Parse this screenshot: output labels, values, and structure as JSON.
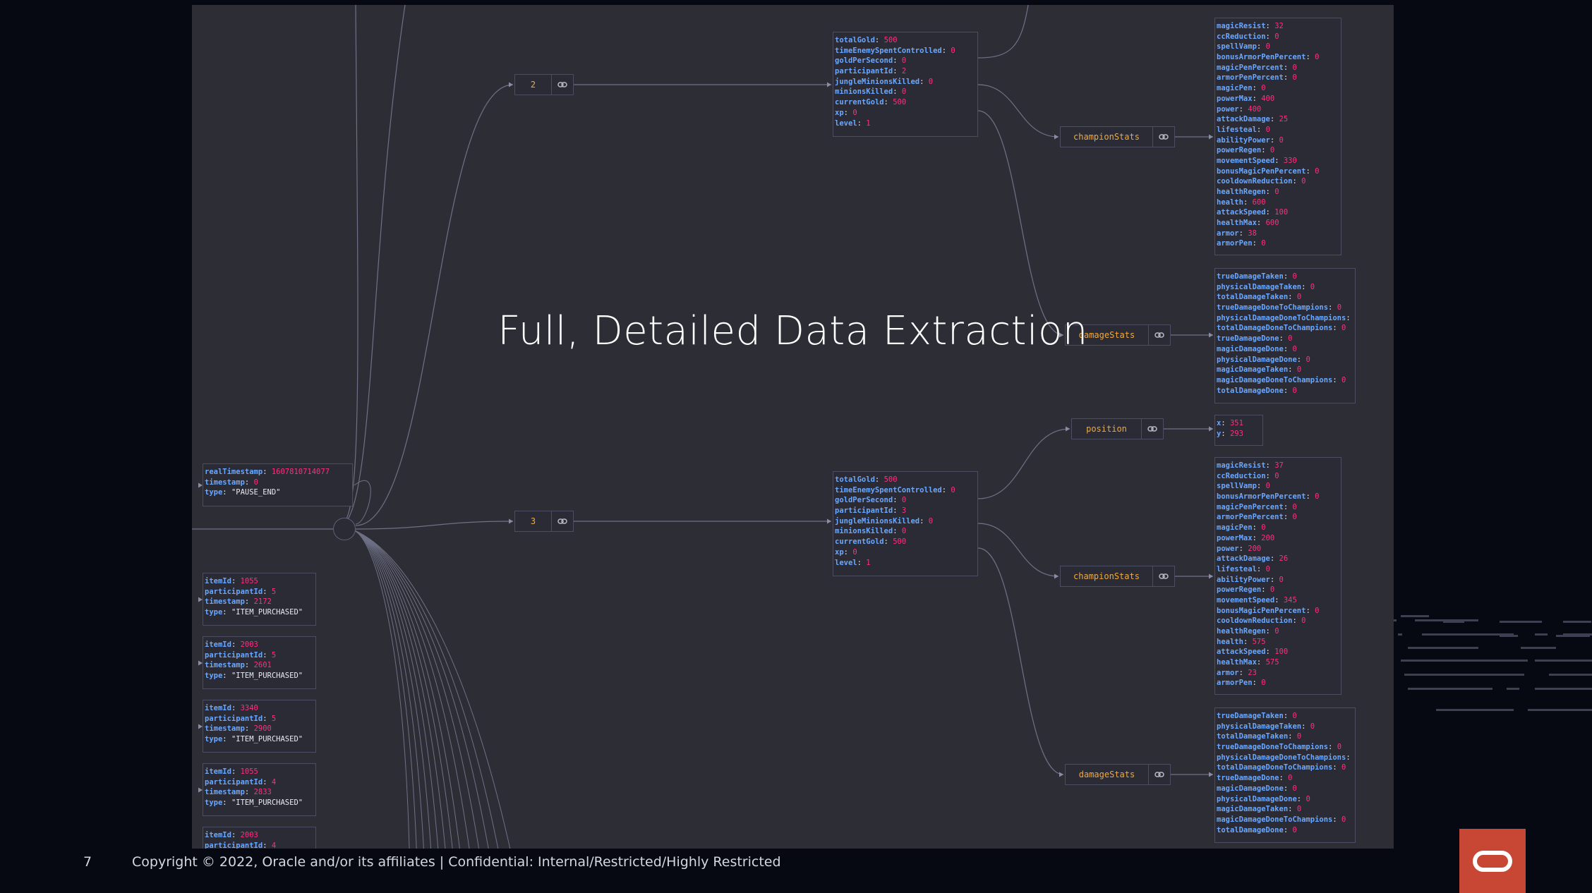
{
  "slide": {
    "title": "Full, Detailed Data Extraction",
    "page_number": "7",
    "footer": "Copyright © 2022, Oracle and/or its affiliates  |  Confidential: Internal/Restricted/Highly Restricted",
    "logo_icon": "oracle-logo-icon"
  },
  "colors": {
    "background": "#060812",
    "canvas": "#2d2e35",
    "node": "#2a2b35",
    "border": "#4b4e63",
    "key": "#6aa8ff",
    "number": "#ff2f80",
    "string": "#e8eaf2",
    "node_label": "#f2a93b",
    "brand": "#c74634"
  },
  "graph": {
    "keys": {
      "n2": "2",
      "n3": "3",
      "championStats": "championStats",
      "damageStats": "damageStats",
      "position": "position",
      "link_icon": "link-icon"
    },
    "objects": [
      {
        "id": "frame2",
        "rows": [
          [
            "totalGold",
            "500"
          ],
          [
            "timeEnemySpentControlled",
            "0"
          ],
          [
            "goldPerSecond",
            "0"
          ],
          [
            "participantId",
            "2"
          ],
          [
            "jungleMinionsKilled",
            "0"
          ],
          [
            "minionsKilled",
            "0"
          ],
          [
            "currentGold",
            "500"
          ],
          [
            "xp",
            "0"
          ],
          [
            "level",
            "1"
          ]
        ]
      },
      {
        "id": "frame3",
        "rows": [
          [
            "totalGold",
            "500"
          ],
          [
            "timeEnemySpentControlled",
            "0"
          ],
          [
            "goldPerSecond",
            "0"
          ],
          [
            "participantId",
            "3"
          ],
          [
            "jungleMinionsKilled",
            "0"
          ],
          [
            "minionsKilled",
            "0"
          ],
          [
            "currentGold",
            "500"
          ],
          [
            "xp",
            "0"
          ],
          [
            "level",
            "1"
          ]
        ]
      },
      {
        "id": "champ2",
        "rows": [
          [
            "magicResist",
            "32"
          ],
          [
            "ccReduction",
            "0"
          ],
          [
            "spellVamp",
            "0"
          ],
          [
            "bonusArmorPenPercent",
            "0"
          ],
          [
            "magicPenPercent",
            "0"
          ],
          [
            "armorPenPercent",
            "0"
          ],
          [
            "magicPen",
            "0"
          ],
          [
            "powerMax",
            "400"
          ],
          [
            "power",
            "400"
          ],
          [
            "attackDamage",
            "25"
          ],
          [
            "lifesteal",
            "0"
          ],
          [
            "abilityPower",
            "0"
          ],
          [
            "powerRegen",
            "0"
          ],
          [
            "movementSpeed",
            "330"
          ],
          [
            "bonusMagicPenPercent",
            "0"
          ],
          [
            "cooldownReduction",
            "0"
          ],
          [
            "healthRegen",
            "0"
          ],
          [
            "health",
            "600"
          ],
          [
            "attackSpeed",
            "100"
          ],
          [
            "healthMax",
            "600"
          ],
          [
            "armor",
            "38"
          ],
          [
            "armorPen",
            "0"
          ]
        ]
      },
      {
        "id": "damage2",
        "rows": [
          [
            "trueDamageTaken",
            "0"
          ],
          [
            "physicalDamageTaken",
            "0"
          ],
          [
            "totalDamageTaken",
            "0"
          ],
          [
            "trueDamageDoneToChampions",
            "0"
          ],
          [
            "physicalDamageDoneToChampions",
            "0"
          ],
          [
            "totalDamageDoneToChampions",
            "0"
          ],
          [
            "trueDamageDone",
            "0"
          ],
          [
            "magicDamageDone",
            "0"
          ],
          [
            "physicalDamageDone",
            "0"
          ],
          [
            "magicDamageTaken",
            "0"
          ],
          [
            "magicDamageDoneToChampions",
            "0"
          ],
          [
            "totalDamageDone",
            "0"
          ]
        ]
      },
      {
        "id": "pos3",
        "rows": [
          [
            "x",
            "351"
          ],
          [
            "y",
            "293"
          ]
        ]
      },
      {
        "id": "champ3",
        "rows": [
          [
            "magicResist",
            "37"
          ],
          [
            "ccReduction",
            "0"
          ],
          [
            "spellVamp",
            "0"
          ],
          [
            "bonusArmorPenPercent",
            "0"
          ],
          [
            "magicPenPercent",
            "0"
          ],
          [
            "armorPenPercent",
            "0"
          ],
          [
            "magicPen",
            "0"
          ],
          [
            "powerMax",
            "200"
          ],
          [
            "power",
            "200"
          ],
          [
            "attackDamage",
            "26"
          ],
          [
            "lifesteal",
            "0"
          ],
          [
            "abilityPower",
            "0"
          ],
          [
            "powerRegen",
            "0"
          ],
          [
            "movementSpeed",
            "345"
          ],
          [
            "bonusMagicPenPercent",
            "0"
          ],
          [
            "cooldownReduction",
            "0"
          ],
          [
            "healthRegen",
            "0"
          ],
          [
            "health",
            "575"
          ],
          [
            "attackSpeed",
            "100"
          ],
          [
            "healthMax",
            "575"
          ],
          [
            "armor",
            "23"
          ],
          [
            "armorPen",
            "0"
          ]
        ]
      },
      {
        "id": "damage3",
        "rows": [
          [
            "trueDamageTaken",
            "0"
          ],
          [
            "physicalDamageTaken",
            "0"
          ],
          [
            "totalDamageTaken",
            "0"
          ],
          [
            "trueDamageDoneToChampions",
            "0"
          ],
          [
            "physicalDamageDoneToChampions",
            "0"
          ],
          [
            "totalDamageDoneToChampions",
            "0"
          ],
          [
            "trueDamageDone",
            "0"
          ],
          [
            "magicDamageDone",
            "0"
          ],
          [
            "physicalDamageDone",
            "0"
          ],
          [
            "magicDamageTaken",
            "0"
          ],
          [
            "magicDamageDoneToChampions",
            "0"
          ],
          [
            "totalDamageDone",
            "0"
          ]
        ]
      },
      {
        "id": "event0",
        "rows": [
          [
            "realTimestamp",
            "1607810714077"
          ],
          [
            "timestamp",
            "0"
          ],
          [
            "type",
            "\"PAUSE_END\""
          ]
        ]
      },
      {
        "id": "event1",
        "rows": [
          [
            "itemId",
            "1055"
          ],
          [
            "participantId",
            "5"
          ],
          [
            "timestamp",
            "2172"
          ],
          [
            "type",
            "\"ITEM_PURCHASED\""
          ]
        ]
      },
      {
        "id": "event2",
        "rows": [
          [
            "itemId",
            "2003"
          ],
          [
            "participantId",
            "5"
          ],
          [
            "timestamp",
            "2601"
          ],
          [
            "type",
            "\"ITEM_PURCHASED\""
          ]
        ]
      },
      {
        "id": "event3",
        "rows": [
          [
            "itemId",
            "3340"
          ],
          [
            "participantId",
            "5"
          ],
          [
            "timestamp",
            "2900"
          ],
          [
            "type",
            "\"ITEM_PURCHASED\""
          ]
        ]
      },
      {
        "id": "event4",
        "rows": [
          [
            "itemId",
            "1055"
          ],
          [
            "participantId",
            "4"
          ],
          [
            "timestamp",
            "2833"
          ],
          [
            "type",
            "\"ITEM_PURCHASED\""
          ]
        ]
      },
      {
        "id": "event5",
        "rows": [
          [
            "itemId",
            "2003"
          ],
          [
            "participantId",
            "4"
          ]
        ]
      }
    ]
  }
}
